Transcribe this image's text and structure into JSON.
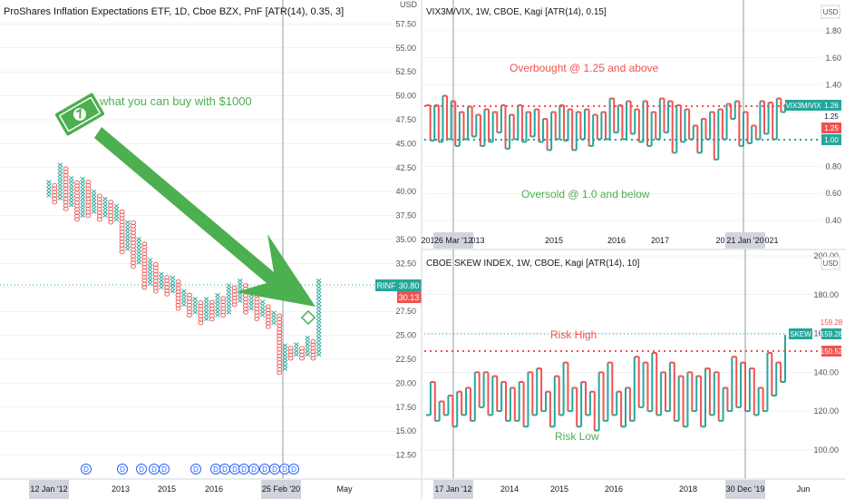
{
  "colors": {
    "up": "#26a69a",
    "down": "#ef5350",
    "green_label": "#4caf50",
    "red_label": "#f05350",
    "arrow": "#4caf50",
    "grid": "#e6e6e6",
    "axis_text": "#50535e",
    "crosshair": "#9598a1",
    "tag_bg": "#d1d4dc"
  },
  "left_panel": {
    "title": "ProShares Inflation Expectations ETF, 1D, Cboe BZX, PnF [ATR(14), 0.35, 3]",
    "annotation": "what you can buy with $1000",
    "symbol_tag": "RINF",
    "price_tag_last": "30.80",
    "price_tag_prev": "30.13",
    "dividend_marker": "D",
    "x_ticks": [
      "12 Jan '12",
      "2013",
      "2015",
      "2016",
      "25 Feb '20",
      "May"
    ],
    "y_ticks": [
      "60.00",
      "57.50",
      "55.00",
      "52.50",
      "50.00",
      "47.50",
      "45.00",
      "42.50",
      "40.00",
      "37.50",
      "35.00",
      "32.50",
      "30.00",
      "27.50",
      "25.00",
      "22.50",
      "20.00",
      "17.50",
      "15.00",
      "12.50"
    ],
    "y_unit": "USD"
  },
  "top_right": {
    "title": "VIX3M/VIX, 1W, CBOE, Kagi [ATR(14), 0.15]",
    "overbought_label": "Overbought @ 1.25 and above",
    "oversold_label": "Oversold @ 1.0 and below",
    "symbol_tag": "VIX3M/VIX",
    "tag_last": "1.26",
    "tag_red": "1.25",
    "tag_mid": "1.25",
    "tag_green": "1.00",
    "y_unit": "USD",
    "y_ticks": [
      "2.00",
      "1.80",
      "1.60",
      "1.40",
      "1.20",
      "1.00",
      "0.80",
      "0.60",
      "0.40"
    ],
    "x_ticks": [
      "201",
      "26 Mar '12",
      "013",
      "2015",
      "2016",
      "2017",
      "201",
      "21 Jan '20",
      "021"
    ]
  },
  "bottom_right": {
    "title": "CBOE SKEW INDEX, 1W, CBOE, Kagi [ATR(14), 10]",
    "risk_high_label": "Risk High",
    "risk_low_label": "Risk Low",
    "symbol_tag": "SKEW",
    "tag_last": "159.28",
    "tag_prev": "159.28",
    "tag_red": "150.52",
    "y_unit": "USD",
    "y_ticks": [
      "200.00",
      "180.00",
      "160.00",
      "140.00",
      "120.00",
      "100.00"
    ],
    "x_ticks": [
      "17 Jan '12",
      "2014",
      "2015",
      "2016",
      "2018",
      "30 Dec '19",
      "Jun"
    ]
  },
  "chart_data": [
    {
      "type": "pnf",
      "title": "ProShares Inflation Expectations ETF, 1D, Cboe BZX, PnF [ATR(14), 0.35, 3]",
      "ylim": [
        10,
        60
      ],
      "columns": [
        {
          "d": "X",
          "lo": 39.6,
          "hi": 41.0
        },
        {
          "d": "O",
          "lo": 38.9,
          "hi": 40.7
        },
        {
          "d": "X",
          "lo": 39.3,
          "hi": 42.8
        },
        {
          "d": "O",
          "lo": 38.2,
          "hi": 42.5
        },
        {
          "d": "X",
          "lo": 38.6,
          "hi": 41.4
        },
        {
          "d": "O",
          "lo": 37.1,
          "hi": 41.0
        },
        {
          "d": "X",
          "lo": 37.5,
          "hi": 41.4
        },
        {
          "d": "O",
          "lo": 37.5,
          "hi": 41.0
        },
        {
          "d": "X",
          "lo": 37.9,
          "hi": 40.0
        },
        {
          "d": "O",
          "lo": 37.1,
          "hi": 39.6
        },
        {
          "d": "X",
          "lo": 37.5,
          "hi": 39.3
        },
        {
          "d": "O",
          "lo": 36.8,
          "hi": 38.9
        },
        {
          "d": "X",
          "lo": 37.1,
          "hi": 38.6
        },
        {
          "d": "O",
          "lo": 33.7,
          "hi": 38.2
        },
        {
          "d": "X",
          "lo": 34.0,
          "hi": 37.1
        },
        {
          "d": "O",
          "lo": 32.2,
          "hi": 36.8
        },
        {
          "d": "X",
          "lo": 32.6,
          "hi": 35.1
        },
        {
          "d": "O",
          "lo": 30.0,
          "hi": 34.8
        },
        {
          "d": "X",
          "lo": 30.4,
          "hi": 33.0
        },
        {
          "d": "O",
          "lo": 29.6,
          "hi": 32.6
        },
        {
          "d": "X",
          "lo": 30.0,
          "hi": 31.5
        },
        {
          "d": "O",
          "lo": 29.3,
          "hi": 31.1
        },
        {
          "d": "X",
          "lo": 29.6,
          "hi": 31.1
        },
        {
          "d": "O",
          "lo": 27.8,
          "hi": 30.8
        },
        {
          "d": "X",
          "lo": 28.2,
          "hi": 29.6
        },
        {
          "d": "O",
          "lo": 27.1,
          "hi": 29.3
        },
        {
          "d": "X",
          "lo": 27.4,
          "hi": 28.9
        },
        {
          "d": "O",
          "lo": 26.3,
          "hi": 28.5
        },
        {
          "d": "X",
          "lo": 26.7,
          "hi": 28.9
        },
        {
          "d": "O",
          "lo": 26.7,
          "hi": 28.5
        },
        {
          "d": "X",
          "lo": 27.1,
          "hi": 29.3
        },
        {
          "d": "O",
          "lo": 27.1,
          "hi": 29.0
        },
        {
          "d": "X",
          "lo": 27.4,
          "hi": 30.4
        },
        {
          "d": "O",
          "lo": 28.2,
          "hi": 30.0
        },
        {
          "d": "X",
          "lo": 28.6,
          "hi": 30.8
        },
        {
          "d": "O",
          "lo": 27.4,
          "hi": 30.4
        },
        {
          "d": "X",
          "lo": 27.8,
          "hi": 29.6
        },
        {
          "d": "O",
          "lo": 26.7,
          "hi": 29.3
        },
        {
          "d": "X",
          "lo": 27.1,
          "hi": 28.5
        },
        {
          "d": "O",
          "lo": 25.9,
          "hi": 28.2
        },
        {
          "d": "X",
          "lo": 26.3,
          "hi": 27.4
        },
        {
          "d": "O",
          "lo": 21.1,
          "hi": 27.1
        },
        {
          "d": "X",
          "lo": 21.5,
          "hi": 24.1
        },
        {
          "d": "O",
          "lo": 22.6,
          "hi": 23.7
        },
        {
          "d": "X",
          "lo": 23.0,
          "hi": 24.1
        },
        {
          "d": "O",
          "lo": 22.6,
          "hi": 23.7
        },
        {
          "d": "X",
          "lo": 23.0,
          "hi": 24.8
        },
        {
          "d": "O",
          "lo": 22.6,
          "hi": 24.5
        },
        {
          "d": "X",
          "lo": 23.0,
          "hi": 30.8
        }
      ]
    },
    {
      "type": "kagi",
      "title": "VIX3M/VIX, 1W, CBOE, Kagi [ATR(14), 0.15]",
      "ylim": [
        0.3,
        2.0
      ],
      "levels": [
        1.25,
        1.0
      ],
      "values": [
        1.25,
        0.99,
        1.25,
        0.98,
        1.32,
        1.0,
        1.28,
        0.95,
        1.2,
        1.0,
        1.24,
        1.02,
        1.18,
        0.95,
        1.22,
        0.98,
        1.2,
        1.05,
        1.25,
        0.93,
        1.18,
        1.0,
        1.25,
        0.98,
        1.2,
        1.02,
        1.22,
        0.98,
        1.15,
        0.92,
        1.2,
        1.0,
        1.25,
        0.99,
        1.22,
        0.92,
        1.2,
        1.0,
        1.22,
        0.95,
        1.18,
        1.0,
        1.2,
        1.0,
        1.3,
        1.05,
        1.25,
        1.0,
        1.28,
        1.04,
        1.22,
        0.98,
        1.28,
        0.95,
        1.2,
        1.0,
        1.3,
        1.05,
        1.28,
        0.9,
        1.25,
        0.98,
        1.22,
        1.0,
        1.1,
        0.9,
        1.15,
        1.0,
        1.2,
        0.85,
        1.22,
        1.0,
        1.26,
        1.15,
        1.28,
        0.95,
        1.2,
        0.97,
        1.1,
        1.0,
        1.28,
        1.04,
        1.27,
        1.0,
        1.3,
        1.2,
        1.26
      ]
    },
    {
      "type": "kagi",
      "title": "CBOE SKEW INDEX, 1W, CBOE, Kagi [ATR(14), 10]",
      "ylim": [
        85,
        200
      ],
      "levels": [
        150.52
      ],
      "values": [
        118,
        135,
        115,
        125,
        118,
        128,
        112,
        130,
        118,
        132,
        115,
        140,
        122,
        140,
        118,
        138,
        120,
        135,
        115,
        132,
        115,
        135,
        112,
        140,
        118,
        142,
        120,
        130,
        112,
        138,
        118,
        145,
        120,
        132,
        112,
        135,
        118,
        130,
        110,
        140,
        115,
        145,
        118,
        130,
        112,
        132,
        115,
        148,
        122,
        145,
        120,
        150,
        118,
        140,
        120,
        145,
        115,
        138,
        112,
        140,
        120,
        138,
        112,
        142,
        118,
        140,
        115,
        132,
        120,
        148,
        122,
        145,
        120,
        142,
        118,
        132,
        120,
        150,
        128,
        145,
        135,
        159.28
      ]
    }
  ]
}
